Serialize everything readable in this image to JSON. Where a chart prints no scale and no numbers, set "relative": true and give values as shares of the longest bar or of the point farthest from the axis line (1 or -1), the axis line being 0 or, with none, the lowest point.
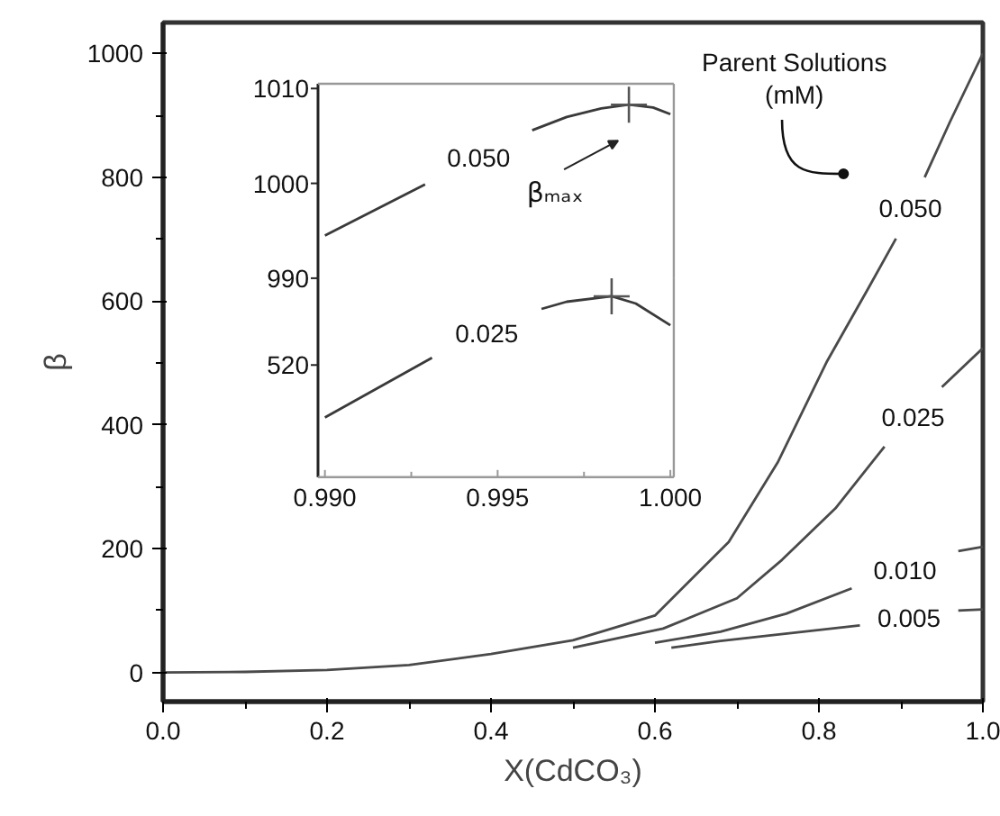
{
  "chart_data": [
    {
      "type": "line",
      "xlabel": "X(CdCO₃)",
      "ylabel": "β",
      "xlim": [
        0,
        1
      ],
      "ylim": [
        -47,
        1050
      ],
      "xticks": [
        {
          "value": 0,
          "label": "0.0"
        },
        {
          "value": 0.2,
          "label": "0.2"
        },
        {
          "value": 0.4,
          "label": "0.4"
        },
        {
          "value": 0.6,
          "label": "0.6"
        },
        {
          "value": 0.8,
          "label": "0.8"
        },
        {
          "value": 1,
          "label": "1.0"
        }
      ],
      "yticks": [
        0,
        200,
        400,
        600,
        800,
        1000
      ],
      "annotations": [
        "Parent Solutions\n(mM)"
      ],
      "series": [
        {
          "name": "0.050",
          "color": "#4a4a4a",
          "x": [
            0,
            0.1,
            0.2,
            0.3,
            0.4,
            0.5,
            0.6,
            0.69,
            0.75,
            0.81,
            0.86,
            0.894,
            0.91,
            0.929,
            0.96,
            1.0
          ],
          "values": [
            0,
            1,
            4,
            12,
            30,
            52,
            92,
            211,
            340,
            503,
            620,
            701,
            null,
            800,
            890,
            1000
          ]
        },
        {
          "name": "0.025",
          "color": "#4a4a4a",
          "x": [
            0.5,
            0.61,
            0.7,
            0.755,
            0.82,
            0.88,
            0.915,
            0.95,
            1.0
          ],
          "values": [
            40,
            71,
            120,
            182,
            265,
            365,
            null,
            461,
            524
          ]
        },
        {
          "name": "0.010",
          "color": "#4a4a4a",
          "x": [
            0.6,
            0.68,
            0.76,
            0.84,
            0.905,
            0.97,
            1.0
          ],
          "values": [
            48,
            66,
            95,
            136,
            null,
            196,
            203
          ]
        },
        {
          "name": "0.005",
          "color": "#4a4a4a",
          "x": [
            0.62,
            0.68,
            0.85,
            0.91,
            0.97,
            1.0
          ],
          "values": [
            40,
            51,
            76,
            null,
            100,
            102
          ]
        }
      ]
    },
    {
      "type": "line",
      "xlim": [
        0.9898,
        1.0001
      ],
      "ylim": [
        990,
        1010.5
      ],
      "yticks": [
        990,
        1000,
        1010
      ],
      "tick_labels": "y",
      "annotations": [
        "βₘₐₓ"
      ],
      "series": [
        {
          "name": "0.050",
          "color": "#3a3a3a",
          "x": [
            0.99,
            0.9929,
            0.99445,
            0.996,
            0.997,
            0.998,
            0.9988,
            0.9995,
            1.0
          ],
          "values": [
            994.5,
            999.9,
            null,
            1005.6,
            1007,
            1007.9,
            1008.3,
            1008,
            1007.3
          ]
        },
        {
          "type": "scatter",
          "marker": "cross",
          "color": "#555555",
          "x": [
            0.9988
          ],
          "values": [
            1008.3
          ]
        }
      ]
    },
    {
      "type": "line",
      "xlim": [
        0.9898,
        1.0001
      ],
      "relative": true,
      "xticks": [
        {
          "value": 0.99,
          "label": "0.990"
        },
        {
          "value": 0.995,
          "label": "0.995"
        },
        {
          "value": 1.0,
          "label": "1.000"
        }
      ],
      "annotations": [
        "520"
      ],
      "series": [
        {
          "name": "0.025",
          "color": "#3a3a3a",
          "x": [
            0.99,
            0.9931,
            0.9946,
            0.99627,
            0.997,
            0.9983,
            0.999,
            1.0
          ],
          "values": [
            0.33,
            0.66,
            null,
            0.93,
            0.97,
            1,
            0.96,
            0.84
          ]
        },
        {
          "type": "scatter",
          "marker": "cross",
          "color": "#555555",
          "x": [
            0.9983
          ],
          "values": [
            1
          ]
        }
      ]
    }
  ]
}
